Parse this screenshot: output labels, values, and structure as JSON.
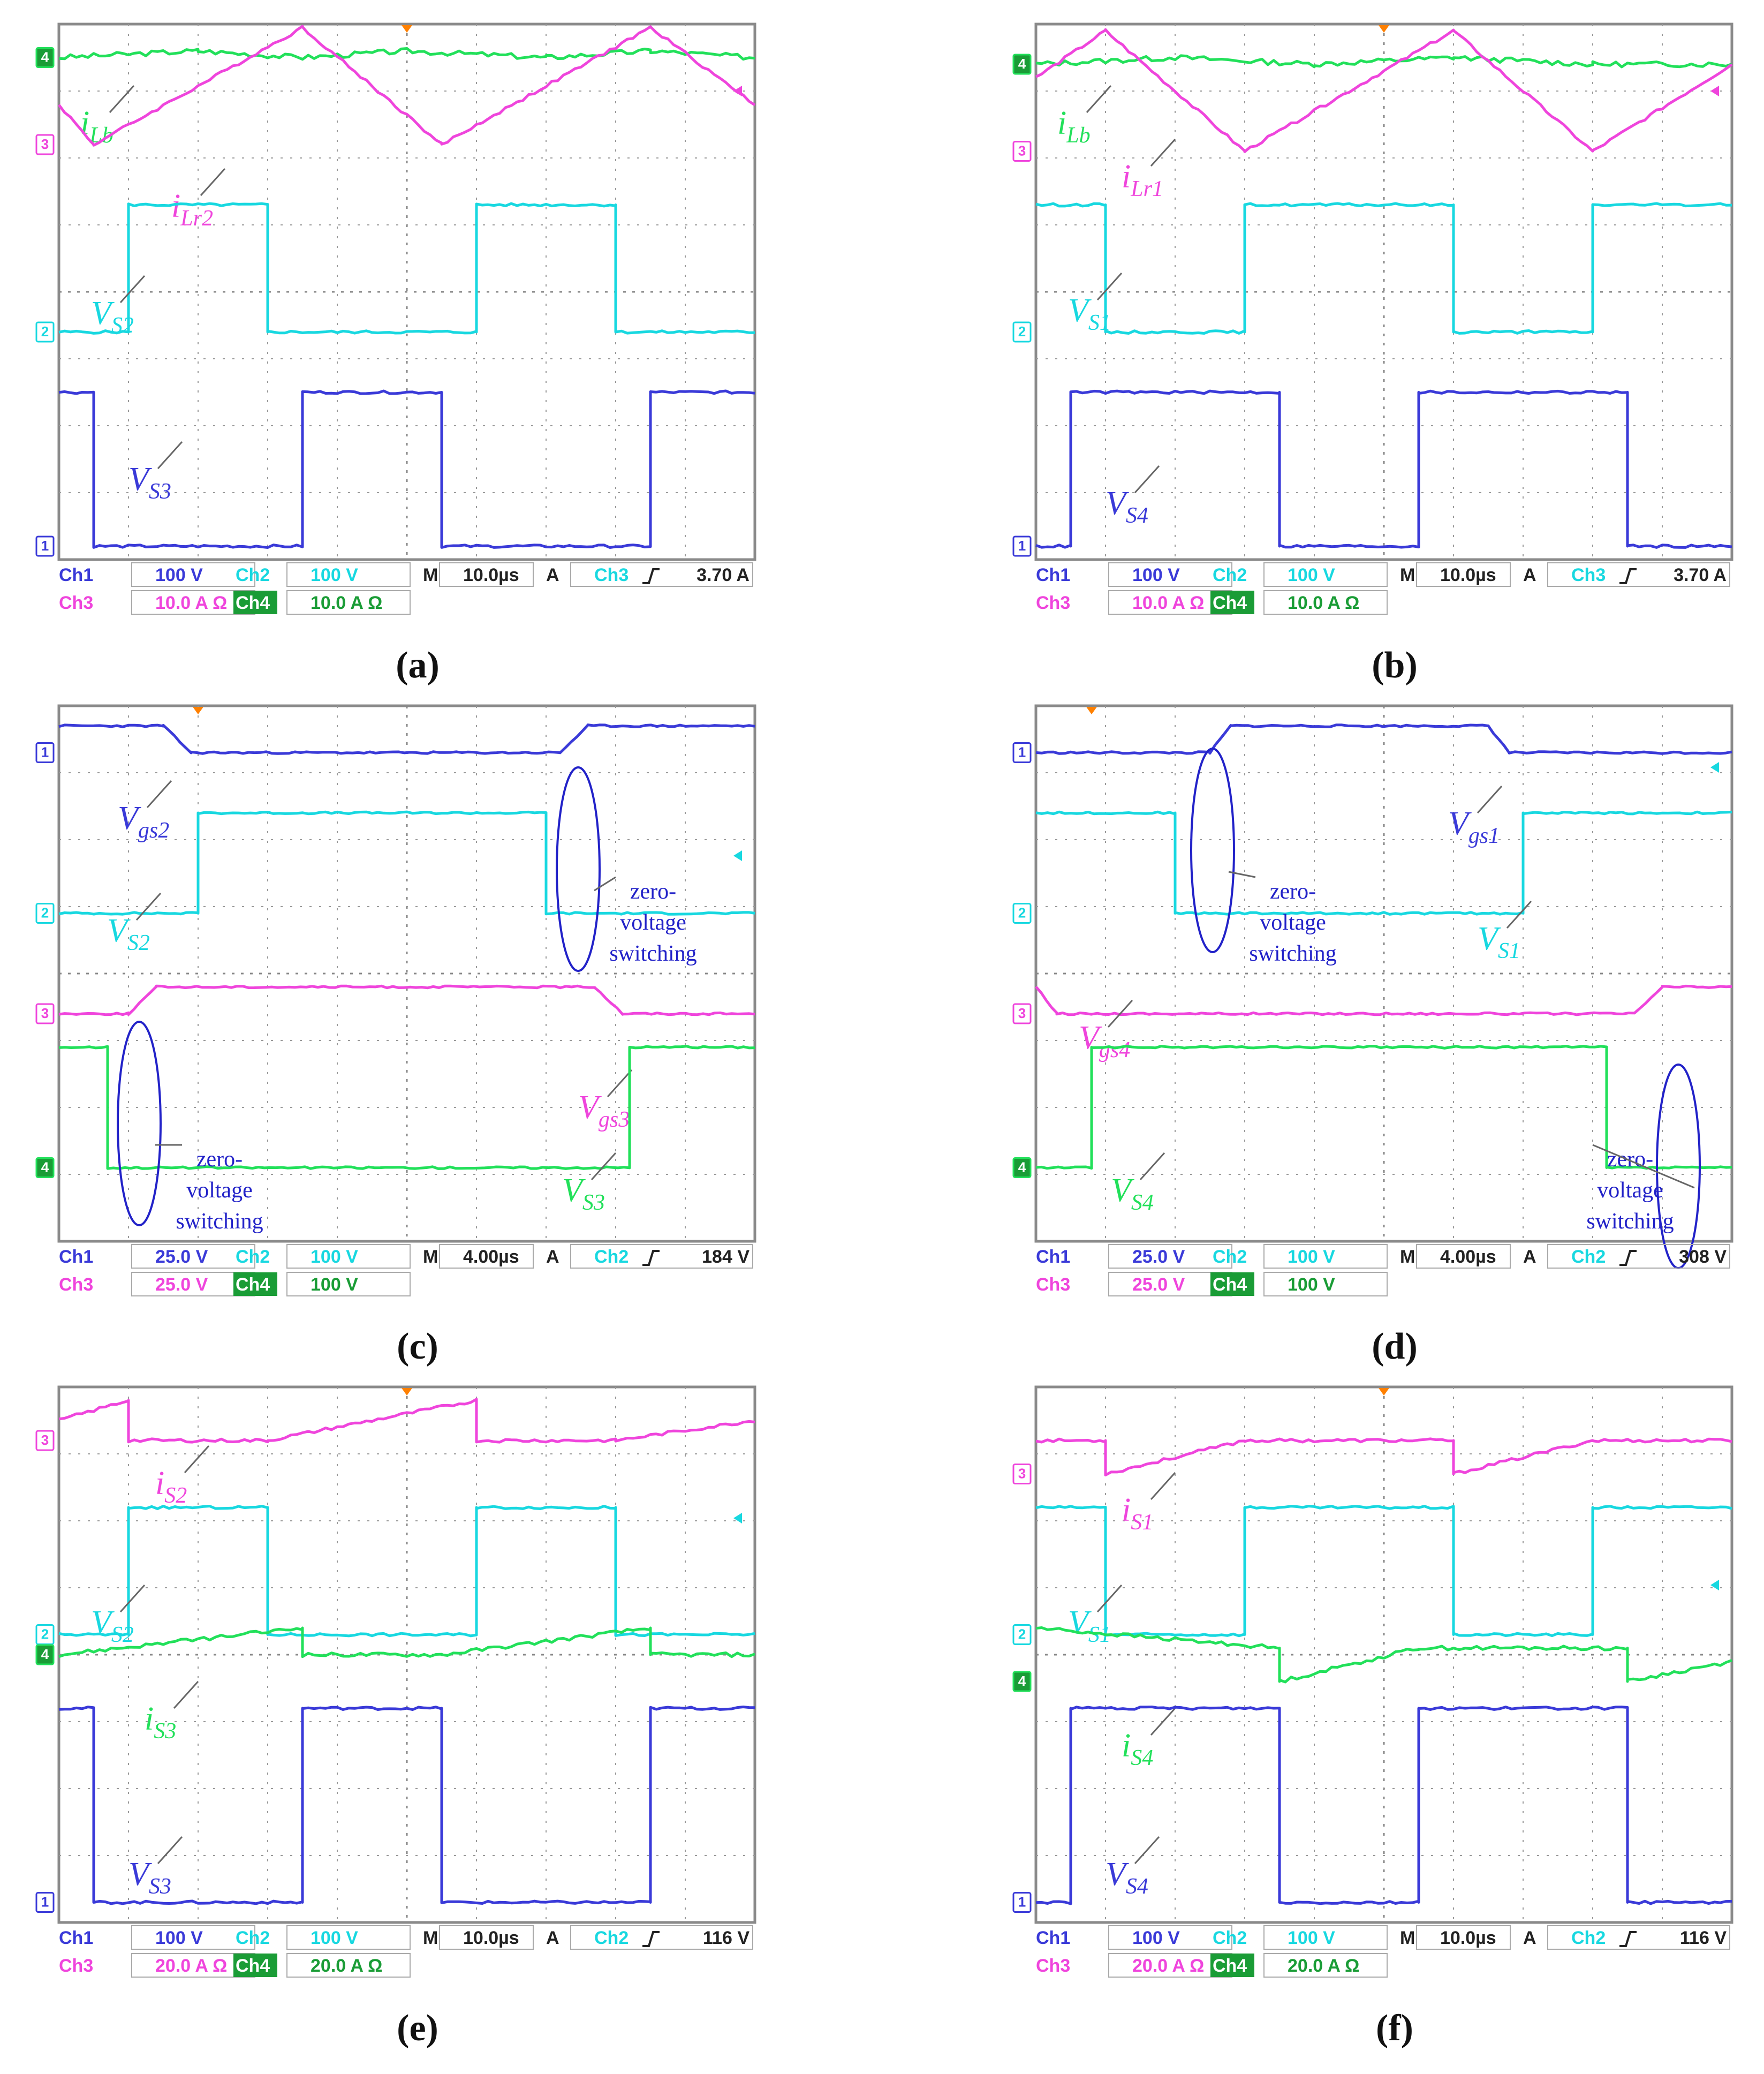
{
  "colors": {
    "ch1": "#3a3ad8",
    "ch2": "#18d8e0",
    "ch3": "#ef45dc",
    "ch4": "#22e05a",
    "annotation": "#2222c8",
    "trigger": "#ff8000"
  },
  "icons": {
    "trigger_position": "orange-down-triangle-icon",
    "trigger_level": "arrow-left-icon",
    "slope": "rising-edge-icon"
  },
  "chart_data": [
    {
      "type": "line",
      "title": "",
      "xlabel": "",
      "ylabel": "",
      "caption": "(a)",
      "grid": true,
      "time_per_div": "10.0µs",
      "readout": {
        "ch1_label": "Ch1",
        "ch1_scale": "100 V",
        "ch2_label": "Ch2",
        "ch2_scale": "100 V",
        "ch3_label": "Ch3",
        "ch3_scale": "10.0 A Ω",
        "ch4_label": "Ch4",
        "ch4_scale": "10.0 A Ω",
        "timebase_label": "M",
        "timebase": "10.0µs",
        "trigger_label": "A",
        "trigger_source": "Ch3",
        "trigger_level": "3.70 A"
      },
      "series": [
        {
          "name": "i_Lb",
          "label_main": "i",
          "label_sub": "Lb",
          "channel": 4
        },
        {
          "name": "i_Lr2",
          "label_main": "i",
          "label_sub": "Lr2",
          "channel": 3
        },
        {
          "name": "V_S2",
          "label_main": "V",
          "label_sub": "S2",
          "channel": 2
        },
        {
          "name": "V_S3",
          "label_main": "V",
          "label_sub": "S3",
          "channel": 1
        }
      ],
      "annotations": []
    },
    {
      "type": "line",
      "title": "",
      "xlabel": "",
      "ylabel": "",
      "caption": "(b)",
      "grid": true,
      "time_per_div": "10.0µs",
      "readout": {
        "ch1_label": "Ch1",
        "ch1_scale": "100 V",
        "ch2_label": "Ch2",
        "ch2_scale": "100 V",
        "ch3_label": "Ch3",
        "ch3_scale": "10.0 A Ω",
        "ch4_label": "Ch4",
        "ch4_scale": "10.0 A Ω",
        "timebase_label": "M",
        "timebase": "10.0µs",
        "trigger_label": "A",
        "trigger_source": "Ch3",
        "trigger_level": "3.70 A"
      },
      "series": [
        {
          "name": "i_Lb",
          "label_main": "i",
          "label_sub": "Lb",
          "channel": 4
        },
        {
          "name": "i_Lr1",
          "label_main": "i",
          "label_sub": "Lr1",
          "channel": 3
        },
        {
          "name": "V_S1",
          "label_main": "V",
          "label_sub": "S1",
          "channel": 2
        },
        {
          "name": "V_S4",
          "label_main": "V",
          "label_sub": "S4",
          "channel": 1
        }
      ],
      "annotations": []
    },
    {
      "type": "line",
      "title": "",
      "xlabel": "",
      "ylabel": "",
      "caption": "(c)",
      "grid": true,
      "time_per_div": "4.00µs",
      "readout": {
        "ch1_label": "Ch1",
        "ch1_scale": "25.0 V",
        "ch2_label": "Ch2",
        "ch2_scale": "100 V",
        "ch3_label": "Ch3",
        "ch3_scale": "25.0 V",
        "ch4_label": "Ch4",
        "ch4_scale": "100 V",
        "timebase_label": "M",
        "timebase": "4.00µs",
        "trigger_label": "A",
        "trigger_source": "Ch2",
        "trigger_level": "184 V"
      },
      "series": [
        {
          "name": "V_gs2",
          "label_main": "V",
          "label_sub": "gs2",
          "channel": 1
        },
        {
          "name": "V_S2",
          "label_main": "V",
          "label_sub": "S2",
          "channel": 2
        },
        {
          "name": "V_gs3",
          "label_main": "V",
          "label_sub": "gs3",
          "channel": 3
        },
        {
          "name": "V_S3",
          "label_main": "V",
          "label_sub": "S3",
          "channel": 4
        }
      ],
      "annotations": [
        {
          "lines": [
            "zero-",
            "voltage",
            "switching"
          ]
        },
        {
          "lines": [
            "zero-",
            "voltage",
            "switching"
          ]
        }
      ]
    },
    {
      "type": "line",
      "title": "",
      "xlabel": "",
      "ylabel": "",
      "caption": "(d)",
      "grid": true,
      "time_per_div": "4.00µs",
      "readout": {
        "ch1_label": "Ch1",
        "ch1_scale": "25.0 V",
        "ch2_label": "Ch2",
        "ch2_scale": "100 V",
        "ch3_label": "Ch3",
        "ch3_scale": "25.0 V",
        "ch4_label": "Ch4",
        "ch4_scale": "100 V",
        "timebase_label": "M",
        "timebase": "4.00µs",
        "trigger_label": "A",
        "trigger_source": "Ch2",
        "trigger_level": "308 V"
      },
      "series": [
        {
          "name": "V_gs1",
          "label_main": "V",
          "label_sub": "gs1",
          "channel": 1
        },
        {
          "name": "V_S1",
          "label_main": "V",
          "label_sub": "S1",
          "channel": 2
        },
        {
          "name": "V_gs4",
          "label_main": "V",
          "label_sub": "gs4",
          "channel": 3
        },
        {
          "name": "V_S4",
          "label_main": "V",
          "label_sub": "S4",
          "channel": 4
        }
      ],
      "annotations": [
        {
          "lines": [
            "zero-",
            "voltage",
            "switching"
          ]
        },
        {
          "lines": [
            "zero-",
            "voltage",
            "switching"
          ]
        }
      ]
    },
    {
      "type": "line",
      "title": "",
      "xlabel": "",
      "ylabel": "",
      "caption": "(e)",
      "grid": true,
      "time_per_div": "10.0µs",
      "readout": {
        "ch1_label": "Ch1",
        "ch1_scale": "100 V",
        "ch2_label": "Ch2",
        "ch2_scale": "100 V",
        "ch3_label": "Ch3",
        "ch3_scale": "20.0 A Ω",
        "ch4_label": "Ch4",
        "ch4_scale": "20.0 A Ω",
        "timebase_label": "M",
        "timebase": "10.0µs",
        "trigger_label": "A",
        "trigger_source": "Ch2",
        "trigger_level": "116 V"
      },
      "series": [
        {
          "name": "i_S2",
          "label_main": "i",
          "label_sub": "S2",
          "channel": 3
        },
        {
          "name": "V_S2",
          "label_main": "V",
          "label_sub": "S2",
          "channel": 2
        },
        {
          "name": "i_S3",
          "label_main": "i",
          "label_sub": "S3",
          "channel": 4
        },
        {
          "name": "V_S3",
          "label_main": "V",
          "label_sub": "S3",
          "channel": 1
        }
      ],
      "annotations": []
    },
    {
      "type": "line",
      "title": "",
      "xlabel": "",
      "ylabel": "",
      "caption": "(f)",
      "grid": true,
      "time_per_div": "10.0µs",
      "readout": {
        "ch1_label": "Ch1",
        "ch1_scale": "100 V",
        "ch2_label": "Ch2",
        "ch2_scale": "100 V",
        "ch3_label": "Ch3",
        "ch3_scale": "20.0 A Ω",
        "ch4_label": "Ch4",
        "ch4_scale": "20.0 A Ω",
        "timebase_label": "M",
        "timebase": "10.0µs",
        "trigger_label": "A",
        "trigger_source": "Ch2",
        "trigger_level": "116 V"
      },
      "series": [
        {
          "name": "i_S1",
          "label_main": "i",
          "label_sub": "S1",
          "channel": 3
        },
        {
          "name": "V_S1",
          "label_main": "V",
          "label_sub": "S1",
          "channel": 2
        },
        {
          "name": "i_S4",
          "label_main": "i",
          "label_sub": "S4",
          "channel": 4
        },
        {
          "name": "V_S4",
          "label_main": "V",
          "label_sub": "S4",
          "channel": 1
        }
      ],
      "annotations": []
    }
  ]
}
